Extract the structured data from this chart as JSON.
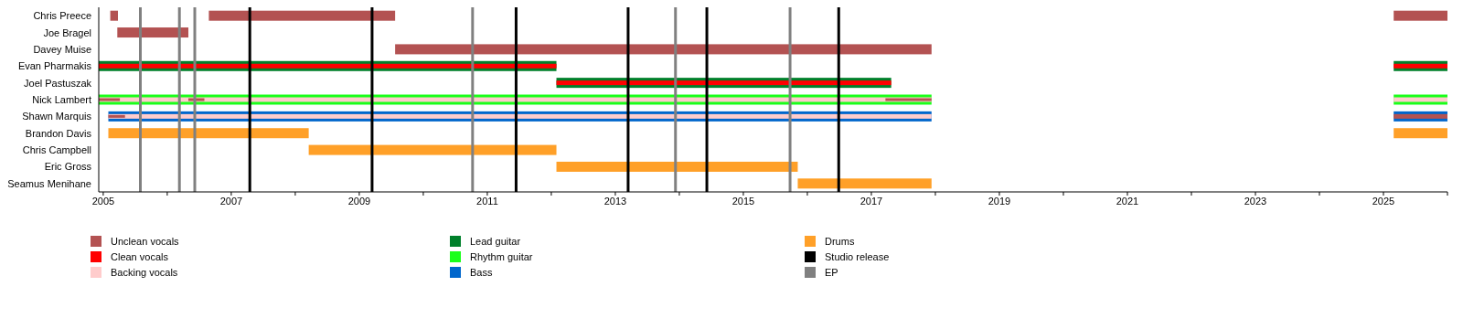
{
  "chart_data": {
    "type": "bar",
    "orientation": "horizontal",
    "categories": [
      "Chris Preece",
      "Joe Bragel",
      "Davey Muise",
      "Evan Pharmakis",
      "Joel Pastuszak",
      "Nick Lambert",
      "Shawn Marquis",
      "Brandon Davis",
      "Chris Campbell",
      "Eric Gross",
      "Seamus Menihane"
    ],
    "series": [
      {
        "name": "Unclean vocals",
        "color": "#b35252",
        "base": [
          2005.11,
          2005.22,
          2009.56,
          null,
          null,
          2004.93,
          2005.08,
          null,
          null,
          null,
          null
        ],
        "values": [
          0.12,
          1.11,
          8.38,
          null,
          null,
          0.33,
          0.26,
          null,
          null,
          null,
          null
        ]
      },
      {
        "color": "#b35252",
        "base": [
          2006.65,
          null,
          null,
          null,
          null,
          2006.33,
          2025.16,
          null,
          null,
          null,
          null
        ],
        "values": [
          2.91,
          null,
          null,
          null,
          null,
          0.25,
          0.84,
          null,
          null,
          null,
          null
        ]
      },
      {
        "color": "#b35252",
        "base": [
          2025.16,
          null,
          null,
          null,
          null,
          2017.22,
          null,
          null,
          null,
          null,
          null
        ],
        "values": [
          0.84,
          null,
          null,
          null,
          null,
          0.72,
          null,
          null,
          null,
          null,
          null
        ]
      },
      {
        "name": "Clean vocals",
        "color": "#ff0000",
        "base": [
          null,
          null,
          null,
          2004.93,
          2012.08,
          null,
          null,
          null,
          null,
          null,
          null
        ],
        "values": [
          null,
          null,
          null,
          7.15,
          5.23,
          null,
          null,
          null,
          null,
          null,
          null
        ]
      },
      {
        "color": "#ff0000",
        "base": [
          null,
          null,
          null,
          2025.16,
          null,
          null,
          null,
          null,
          null,
          null,
          null
        ],
        "values": [
          null,
          null,
          null,
          0.84,
          null,
          null,
          null,
          null,
          null,
          null,
          null
        ]
      },
      {
        "name": "Backing vocals",
        "color": "#ffcccc",
        "base": [
          null,
          null,
          null,
          null,
          null,
          2004.93,
          2005.08,
          null,
          null,
          null,
          null
        ],
        "values": [
          null,
          null,
          null,
          null,
          null,
          13.01,
          12.86,
          null,
          null,
          null,
          null
        ]
      },
      {
        "color": "#ffcccc",
        "base": [
          null,
          null,
          null,
          null,
          null,
          2025.16,
          null,
          null,
          null,
          null,
          null
        ],
        "values": [
          null,
          null,
          null,
          null,
          null,
          0.84,
          null,
          null,
          null,
          null,
          null
        ]
      },
      {
        "name": "Lead guitar",
        "color": "#00802b",
        "base": [
          null,
          null,
          null,
          2004.93,
          2012.08,
          null,
          null,
          null,
          null,
          null,
          null
        ],
        "values": [
          null,
          null,
          null,
          7.15,
          5.23,
          null,
          null,
          null,
          null,
          null,
          null
        ]
      },
      {
        "color": "#00802b",
        "base": [
          null,
          null,
          null,
          2025.16,
          null,
          null,
          null,
          null,
          null,
          null,
          null
        ],
        "values": [
          null,
          null,
          null,
          0.84,
          null,
          null,
          null,
          null,
          null,
          null,
          null
        ]
      },
      {
        "name": "Rhythm guitar",
        "color": "#1aff1a",
        "base": [
          null,
          null,
          null,
          null,
          null,
          2004.93,
          null,
          null,
          null,
          null,
          null
        ],
        "values": [
          null,
          null,
          null,
          null,
          null,
          13.01,
          null,
          null,
          null,
          null,
          null
        ]
      },
      {
        "color": "#1aff1a",
        "base": [
          null,
          null,
          null,
          null,
          null,
          2025.16,
          null,
          null,
          null,
          null,
          null
        ],
        "values": [
          null,
          null,
          null,
          null,
          null,
          0.84,
          null,
          null,
          null,
          null,
          null
        ]
      },
      {
        "name": "Bass",
        "color": "#0066cc",
        "base": [
          null,
          null,
          null,
          null,
          null,
          null,
          2005.08,
          null,
          null,
          null,
          null
        ],
        "values": [
          null,
          null,
          null,
          null,
          null,
          null,
          12.86,
          null,
          null,
          null,
          null
        ]
      },
      {
        "color": "#0066cc",
        "base": [
          null,
          null,
          null,
          null,
          null,
          null,
          2025.16,
          null,
          null,
          null,
          null
        ],
        "values": [
          null,
          null,
          null,
          null,
          null,
          null,
          0.84,
          null,
          null,
          null,
          null
        ]
      },
      {
        "name": "Drums",
        "color": "#ffa028",
        "base": [
          null,
          null,
          null,
          null,
          null,
          null,
          null,
          2005.08,
          2008.21,
          2012.08,
          2015.85
        ],
        "values": [
          null,
          null,
          null,
          null,
          null,
          null,
          null,
          3.13,
          3.87,
          3.77,
          2.09
        ]
      },
      {
        "color": "#ffa028",
        "base": [
          null,
          null,
          null,
          null,
          null,
          null,
          null,
          2025.16,
          null,
          null,
          null
        ],
        "values": [
          null,
          null,
          null,
          null,
          null,
          null,
          null,
          0.84,
          null,
          null,
          null
        ]
      }
    ],
    "xlim": [
      2004.93,
      2026
    ],
    "xticks": [
      2005,
      {
        "value": 2006,
        "label": null
      },
      2007,
      {
        "value": 2008,
        "label": null
      },
      2009,
      {
        "value": 2010,
        "label": null
      },
      2011,
      {
        "value": 2012,
        "label": null
      },
      2013,
      {
        "value": 2014,
        "label": null
      },
      2015,
      {
        "value": 2016,
        "label": null
      },
      2017,
      {
        "value": 2018,
        "label": null
      },
      2019,
      {
        "value": 2020,
        "label": null
      },
      2021,
      {
        "value": 2022,
        "label": null
      },
      2023,
      {
        "value": 2024,
        "label": null
      },
      2025,
      {
        "value": 2026,
        "label": null
      }
    ],
    "ref_lines": [
      {
        "axis": "x",
        "value": 2007.29,
        "label": "Studio release",
        "color": "#000000"
      },
      {
        "axis": "x",
        "value": 2009.2,
        "color": "#000000"
      },
      {
        "axis": "x",
        "value": 2011.45,
        "color": "#000000"
      },
      {
        "axis": "x",
        "value": 2013.2,
        "color": "#000000"
      },
      {
        "axis": "x",
        "value": 2014.43,
        "color": "#000000"
      },
      {
        "axis": "x",
        "value": 2016.49,
        "color": "#000000"
      },
      {
        "axis": "x",
        "value": 2005.58,
        "label": "EP",
        "color": "#808080"
      },
      {
        "axis": "x",
        "value": 2006.19,
        "color": "#808080"
      },
      {
        "axis": "x",
        "value": 2006.43,
        "color": "#808080"
      },
      {
        "axis": "x",
        "value": 2010.77,
        "color": "#808080"
      },
      {
        "axis": "x",
        "value": 2013.94,
        "color": "#808080"
      },
      {
        "axis": "x",
        "value": 2015.73,
        "color": "#808080"
      }
    ],
    "grid": false,
    "legend": "bottom"
  }
}
